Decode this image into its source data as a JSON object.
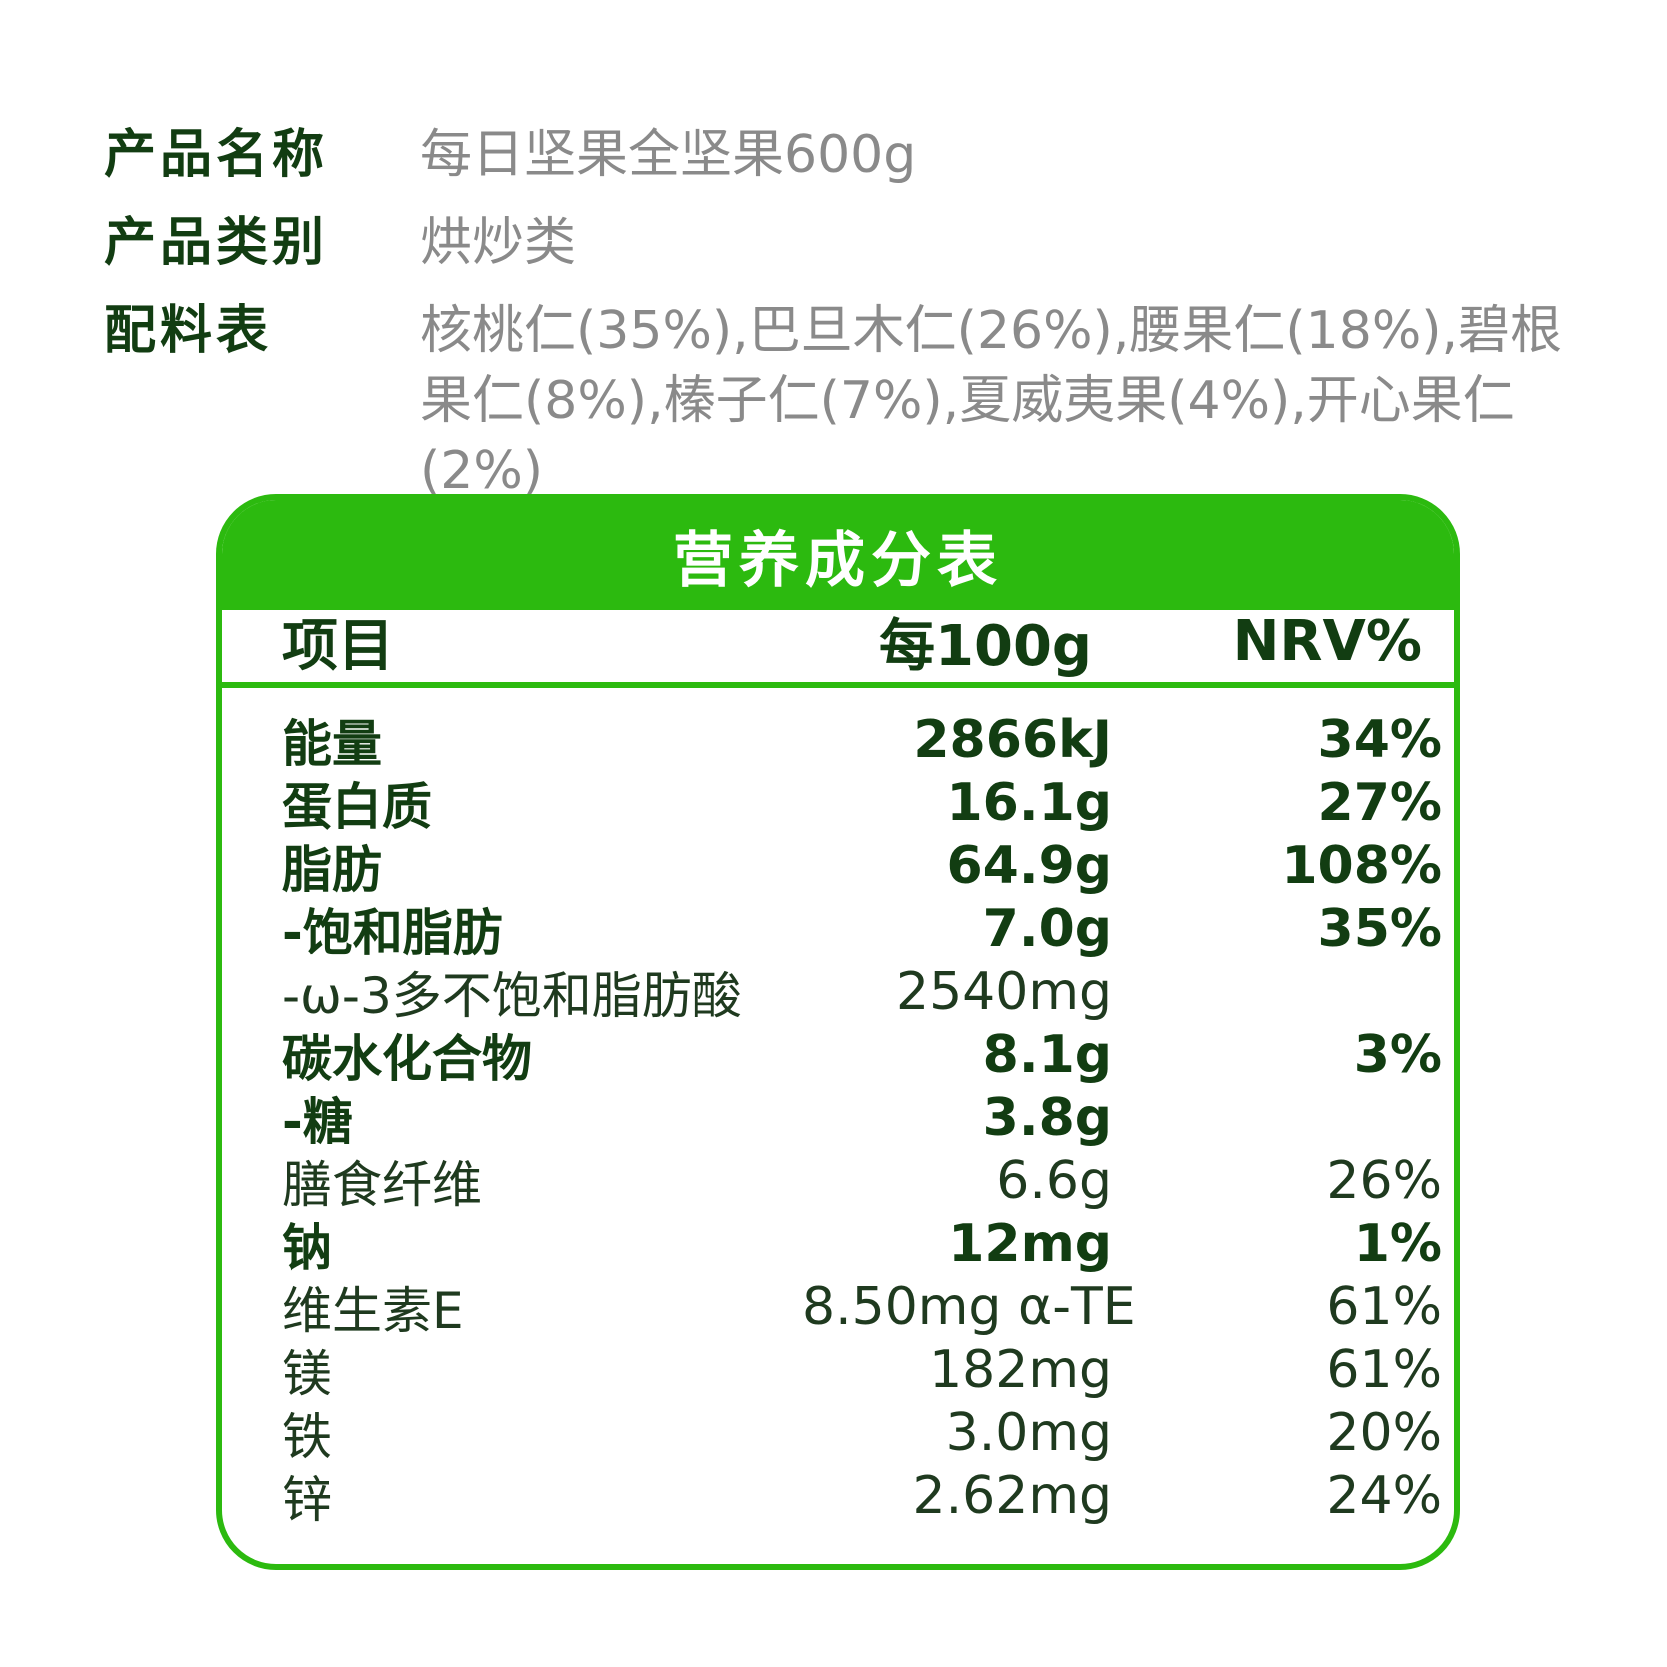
{
  "info": [
    {
      "label": "产品名称",
      "value": "每日坚果全坚果600g"
    },
    {
      "label": "产品类别",
      "value": "烘炒类"
    },
    {
      "label": "配料表",
      "value": "核桃仁(35%),巴旦木仁(26%),腰果仁(18%),碧根果仁(8%),榛子仁(7%),夏威夷果(4%),开心果仁(2%)"
    }
  ],
  "panel": {
    "title": "营养成分表",
    "headers": {
      "name": "项目",
      "per100": "每100g",
      "nrv": "NRV%"
    },
    "rows": [
      {
        "name": "能量",
        "per100": "2866kJ",
        "nrv": "34%",
        "bold": true
      },
      {
        "name": "蛋白质",
        "per100": "16.1g",
        "nrv": "27%",
        "bold": true
      },
      {
        "name": "脂肪",
        "per100": "64.9g",
        "nrv": "108%",
        "bold": true
      },
      {
        "name": "-饱和脂肪",
        "per100": "7.0g",
        "nrv": "35%",
        "bold": true
      },
      {
        "name": "-ω-3多不饱和脂肪酸",
        "per100": "2540mg",
        "nrv": "",
        "bold": false
      },
      {
        "name": "碳水化合物",
        "per100": "8.1g",
        "nrv": "3%",
        "bold": true
      },
      {
        "name": "-糖",
        "per100": "3.8g",
        "nrv": "",
        "bold": true
      },
      {
        "name": "膳食纤维",
        "per100": "6.6g",
        "nrv": "26%",
        "bold": false
      },
      {
        "name": "钠",
        "per100": "12mg",
        "nrv": "1%",
        "bold": true
      },
      {
        "name": "维生素E",
        "per100": "8.50mg α-TE",
        "nrv": "61%",
        "bold": false
      },
      {
        "name": "镁",
        "per100": "182mg",
        "nrv": "61%",
        "bold": false
      },
      {
        "name": "铁",
        "per100": "3.0mg",
        "nrv": "20%",
        "bold": false
      },
      {
        "name": "锌",
        "per100": "2.62mg",
        "nrv": "24%",
        "bold": false
      }
    ]
  },
  "colors": {
    "accent": "#2cba0f",
    "text_dark": "#123d12",
    "text_gray": "#8a8a8a"
  }
}
